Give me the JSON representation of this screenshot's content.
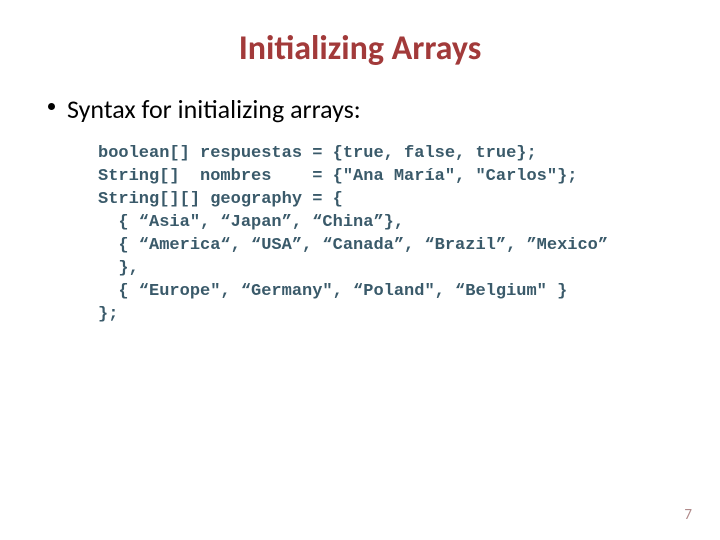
{
  "title": {
    "text": "Initializing Arrays",
    "color": "#a23a3a",
    "fontsize": 34
  },
  "bullet": {
    "text": "Syntax for initializing arrays:",
    "fontsize": 26,
    "dot_color": "#000000",
    "dot_size": 7
  },
  "code": {
    "color": "#3a5a6a",
    "fontsize": 17,
    "lines": [
      "boolean[] respuestas = {true, false, true};",
      "String[]  nombres    = {\"Ana María\", \"Carlos\"};",
      "String[][] geography = {",
      "  { “Asia\", “Japan”, “China”},",
      "  { “America“, “USA”, “Canada”, “Brazil”, ”Mexico”",
      "  },",
      "  { “Europe\", “Germany\", “Poland\", “Belgium\" }",
      "};"
    ]
  },
  "page_number": {
    "text": "7",
    "color": "#b08a8a",
    "fontsize": 15
  }
}
